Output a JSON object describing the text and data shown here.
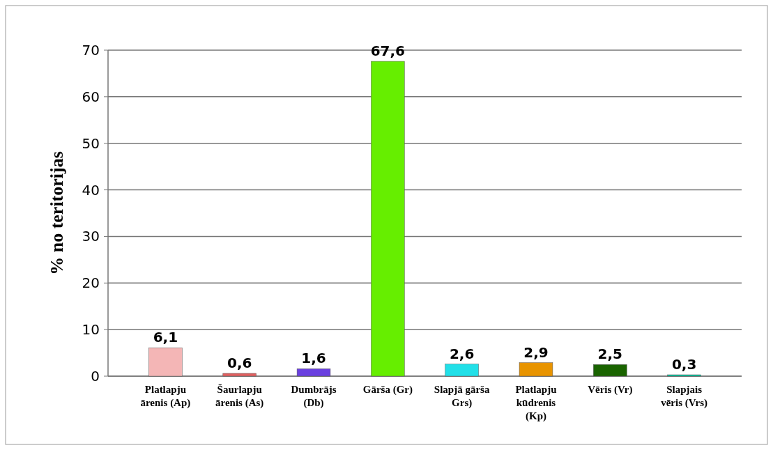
{
  "chart_data": {
    "type": "bar",
    "ylabel": "% no teritorijas",
    "categories": [
      "Platlapju ārenis (Ap)",
      "Šaurlapju ārenis (As)",
      "Dumbrājs (Db)",
      "Gārša (Gr)",
      "Slapjā gārša Grs)",
      "Platlapju kūdrenis (Kp)",
      "Vēris (Vr)",
      "Slapjais vēris (Vrs)"
    ],
    "values": [
      6.1,
      0.6,
      1.6,
      67.6,
      2.6,
      2.9,
      2.5,
      0.3
    ],
    "colors": [
      "#f4b6b6",
      "#e06060",
      "#6a40e0",
      "#66ee00",
      "#22e0e8",
      "#e89400",
      "#1a6400",
      "#00c8a0"
    ],
    "value_labels": [
      "6,1",
      "0,6",
      "1,6",
      "67,6",
      "2,6",
      "2,9",
      "2,5",
      "0,3"
    ],
    "ylim": [
      0,
      70
    ],
    "yticks": [
      0,
      10,
      20,
      30,
      40,
      50,
      60,
      70
    ],
    "grid": "y"
  }
}
